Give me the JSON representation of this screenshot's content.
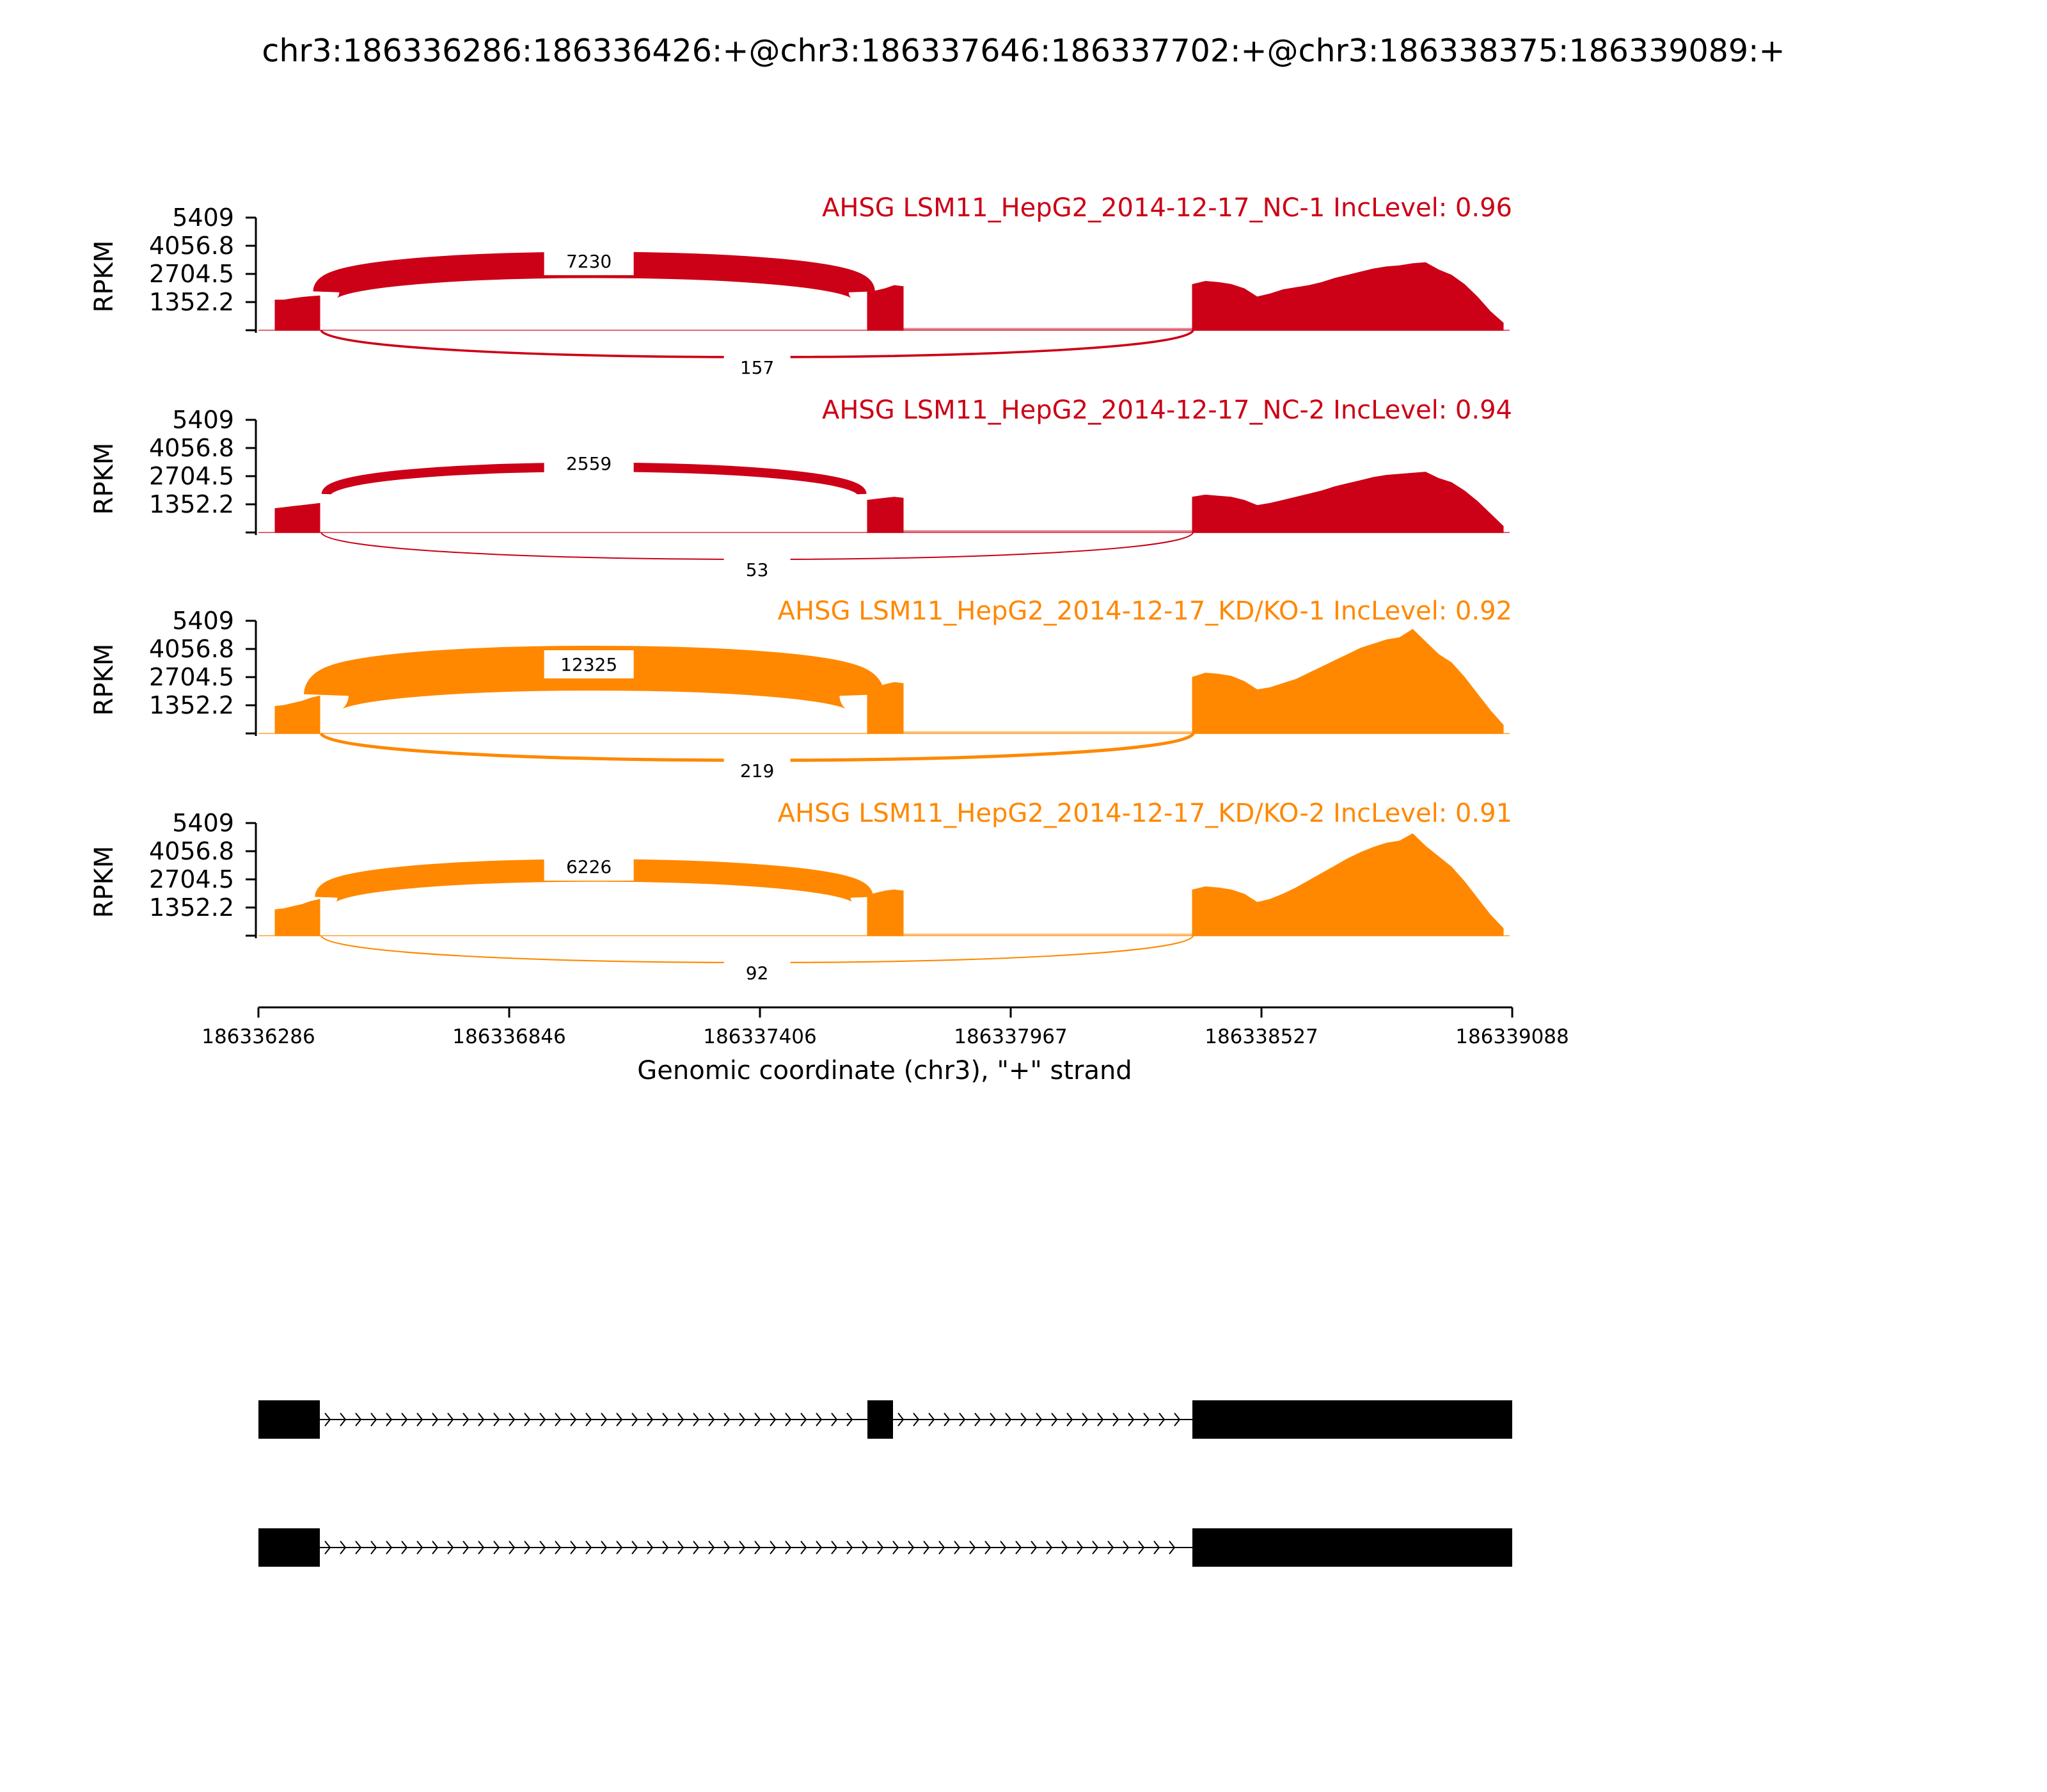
{
  "title": "chr3:186336286:186336426:+@chr3:186337646:186337702:+@chr3:186338375:186339089:+",
  "colors": {
    "nc": "#cc0016",
    "kd": "#ff8800",
    "axis": "#000000",
    "gene": "#000000"
  },
  "chart_data": {
    "type": "sashimi",
    "title": "chr3:186336286:186336426:+@chr3:186337646:186337702:+@chr3:186338375:186339089:+",
    "xlabel": "Genomic coordinate (chr3), \"+\" strand",
    "ylabel": "RPKM",
    "xlim": [
      186336286,
      186339088
    ],
    "x_ticks": [
      "186336286",
      "186336846",
      "186337406",
      "186337967",
      "186338527",
      "186339088"
    ],
    "ylim": [
      0,
      5409
    ],
    "y_ticks": [
      "1352.2",
      "2704.5",
      "4056.8",
      "5409"
    ],
    "exons": [
      [
        186336286,
        186336426
      ],
      [
        186337646,
        186337702
      ],
      [
        186338375,
        186339089
      ]
    ],
    "panels": [
      {
        "label": "AHSG LSM11_HepG2_2014-12-17_NC-1 IncLevel: 0.96",
        "color_key": "nc",
        "coverage": {
          "exon1": [
            1450,
            1450,
            1520,
            1580,
            1620,
            1650
          ],
          "exon2": [
            1850,
            1900,
            2000,
            2150,
            2100
          ],
          "exon3": [
            2200,
            2350,
            2300,
            2200,
            2000,
            1600,
            1750,
            1950,
            2050,
            2150,
            2300,
            2500,
            2650,
            2800,
            2950,
            3050,
            3100,
            3200,
            3250,
            2900,
            2650,
            2200,
            1600,
            900,
            350
          ]
        },
        "junctions": [
          {
            "from": 186336426,
            "to": 186337646,
            "count": 7230,
            "side": "above"
          },
          {
            "from": 186336426,
            "to": 186338375,
            "count": 157,
            "side": "below"
          },
          {
            "from": 186337702,
            "to": 186338375,
            "count": 7230,
            "side": "base"
          }
        ]
      },
      {
        "label": "AHSG LSM11_HepG2_2014-12-17_NC-2 IncLevel: 0.94",
        "color_key": "nc",
        "coverage": {
          "exon1": [
            1150,
            1200,
            1250,
            1300,
            1350,
            1400
          ],
          "exon2": [
            1550,
            1600,
            1650,
            1700,
            1650
          ],
          "exon3": [
            1700,
            1800,
            1750,
            1700,
            1550,
            1300,
            1400,
            1550,
            1700,
            1850,
            2000,
            2200,
            2350,
            2500,
            2650,
            2750,
            2800,
            2850,
            2900,
            2600,
            2400,
            2000,
            1500,
            900,
            300
          ]
        },
        "junctions": [
          {
            "from": 186336426,
            "to": 186337646,
            "count": 2559,
            "side": "above"
          },
          {
            "from": 186336426,
            "to": 186338375,
            "count": 53,
            "side": "below"
          },
          {
            "from": 186337702,
            "to": 186338375,
            "count": 2559,
            "side": "base"
          }
        ]
      },
      {
        "label": "AHSG LSM11_HepG2_2014-12-17_KD/KO-1 IncLevel: 0.92",
        "color_key": "kd",
        "coverage": {
          "exon1": [
            1300,
            1350,
            1450,
            1550,
            1700,
            1800
          ],
          "exon2": [
            2100,
            2200,
            2350,
            2450,
            2400
          ],
          "exon3": [
            2700,
            2900,
            2850,
            2750,
            2500,
            2100,
            2200,
            2400,
            2600,
            2900,
            3200,
            3500,
            3800,
            4100,
            4300,
            4500,
            4600,
            5000,
            4400,
            3800,
            3400,
            2700,
            1900,
            1100,
            400
          ]
        },
        "junctions": [
          {
            "from": 186336426,
            "to": 186337646,
            "count": 12325,
            "side": "above"
          },
          {
            "from": 186336426,
            "to": 186338375,
            "count": 219,
            "side": "below"
          },
          {
            "from": 186337702,
            "to": 186338375,
            "count": 12325,
            "side": "base"
          }
        ]
      },
      {
        "label": "AHSG LSM11_HepG2_2014-12-17_KD/KO-2 IncLevel: 0.91",
        "color_key": "kd",
        "coverage": {
          "exon1": [
            1250,
            1300,
            1400,
            1500,
            1650,
            1750
          ],
          "exon2": [
            1950,
            2050,
            2150,
            2200,
            2150
          ],
          "exon3": [
            2200,
            2350,
            2300,
            2200,
            2000,
            1600,
            1750,
            2000,
            2300,
            2650,
            3000,
            3350,
            3700,
            4000,
            4250,
            4450,
            4550,
            4900,
            4300,
            3800,
            3300,
            2600,
            1800,
            1000,
            350
          ]
        },
        "junctions": [
          {
            "from": 186336426,
            "to": 186337646,
            "count": 6226,
            "side": "above"
          },
          {
            "from": 186336426,
            "to": 186338375,
            "count": 92,
            "side": "below"
          },
          {
            "from": 186337702,
            "to": 186338375,
            "count": 6226,
            "side": "base"
          }
        ]
      }
    ],
    "gene_models": [
      {
        "exons": [
          [
            186336286,
            186336426
          ],
          [
            186337646,
            186337702
          ],
          [
            186338375,
            186339088
          ]
        ]
      },
      {
        "exons": [
          [
            186336286,
            186336426
          ],
          [
            186338375,
            186339088
          ]
        ]
      }
    ]
  }
}
